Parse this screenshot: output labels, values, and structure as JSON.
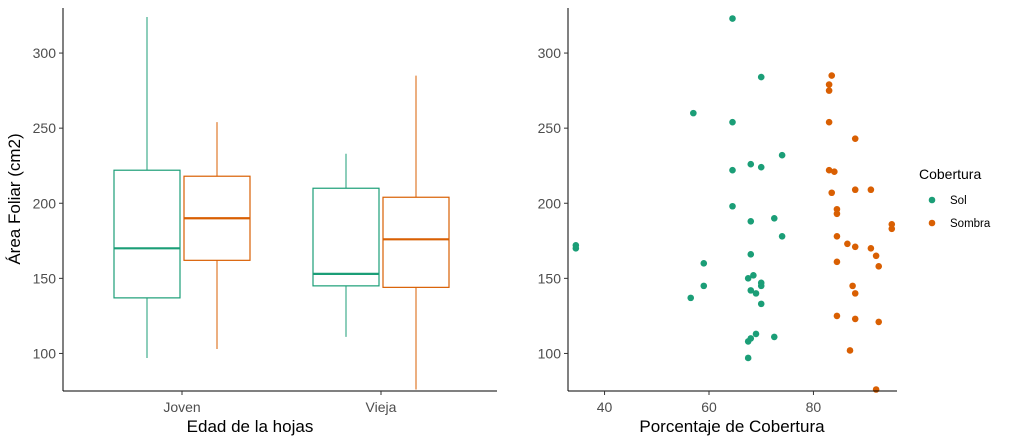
{
  "chart_data": [
    {
      "type": "box",
      "xlabel": "Edad de la hojas",
      "ylabel": "Área Foliar (cm2)",
      "ylim": [
        75,
        330
      ],
      "yticks": [
        100,
        150,
        200,
        250,
        300
      ],
      "grid": false,
      "categories": [
        "Joven",
        "Vieja"
      ],
      "series": [
        {
          "group": "Sol",
          "color": "#1b9e77",
          "boxes": [
            {
              "min": 97,
              "q1": 137,
              "median": 170,
              "q3": 222,
              "max": 324
            },
            {
              "min": 111,
              "q1": 145,
              "median": 153,
              "q3": 210,
              "max": 233
            }
          ]
        },
        {
          "group": "Sombra",
          "color": "#d95f02",
          "boxes": [
            {
              "min": 103,
              "q1": 162,
              "median": 190,
              "q3": 218,
              "max": 254
            },
            {
              "min": 76,
              "q1": 144,
              "median": 176,
              "q3": 204,
              "max": 285
            }
          ]
        }
      ]
    },
    {
      "type": "scatter",
      "xlabel": "Porcentaje de Cobertura",
      "ylabel": "",
      "xlim": [
        33,
        96
      ],
      "ylim": [
        75,
        330
      ],
      "xticks": [
        40,
        60,
        80
      ],
      "yticks": [
        100,
        150,
        200,
        250,
        300
      ],
      "grid": false,
      "legend": {
        "title": "Cobertura",
        "position": "right",
        "items": [
          {
            "label": "Sol",
            "color": "#1b9e77"
          },
          {
            "label": "Sombra",
            "color": "#d95f02"
          }
        ]
      },
      "series": [
        {
          "name": "Sol",
          "color": "#1b9e77",
          "points": [
            [
              64.5,
              323
            ],
            [
              70,
              284
            ],
            [
              57,
              260
            ],
            [
              64.5,
              254
            ],
            [
              74,
              232
            ],
            [
              68,
              226
            ],
            [
              64.5,
              222
            ],
            [
              70,
              224
            ],
            [
              64.5,
              198
            ],
            [
              72.5,
              190
            ],
            [
              68,
              188
            ],
            [
              74,
              178
            ],
            [
              34.5,
              172
            ],
            [
              34.5,
              170
            ],
            [
              68,
              166
            ],
            [
              59,
              160
            ],
            [
              68.5,
              152
            ],
            [
              67.5,
              150
            ],
            [
              70,
              147
            ],
            [
              70,
              145
            ],
            [
              59,
              145
            ],
            [
              68,
              142
            ],
            [
              69,
              140
            ],
            [
              56.5,
              137
            ],
            [
              70,
              133
            ],
            [
              69,
              113
            ],
            [
              72.5,
              111
            ],
            [
              68,
              110
            ],
            [
              67.5,
              108
            ],
            [
              67.5,
              97
            ]
          ]
        },
        {
          "name": "Sombra",
          "color": "#d95f02",
          "points": [
            [
              83.5,
              285
            ],
            [
              83,
              279
            ],
            [
              83,
              275
            ],
            [
              83,
              254
            ],
            [
              88,
              243
            ],
            [
              83,
              222
            ],
            [
              84,
              221
            ],
            [
              88,
              209
            ],
            [
              91,
              209
            ],
            [
              83.5,
              207
            ],
            [
              84.5,
              196
            ],
            [
              84.5,
              193
            ],
            [
              95,
              186
            ],
            [
              95,
              183
            ],
            [
              84.5,
              178
            ],
            [
              86.5,
              173
            ],
            [
              88,
              171
            ],
            [
              91,
              170
            ],
            [
              92,
              165
            ],
            [
              84.5,
              161
            ],
            [
              92.5,
              158
            ],
            [
              87.5,
              145
            ],
            [
              88,
              140
            ],
            [
              84.5,
              125
            ],
            [
              88,
              123
            ],
            [
              92.5,
              121
            ],
            [
              87,
              102
            ],
            [
              92,
              76
            ]
          ]
        }
      ]
    }
  ]
}
